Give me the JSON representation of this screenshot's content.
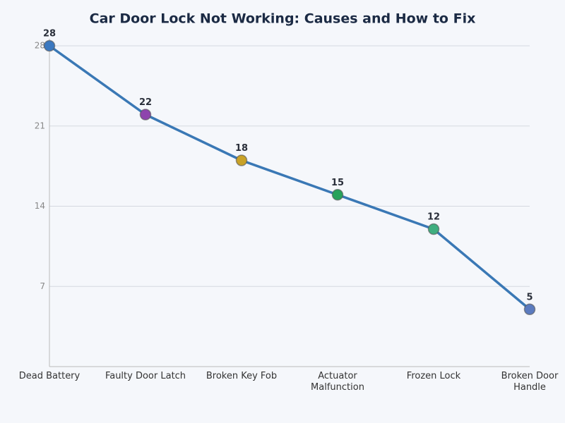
{
  "chart_data": {
    "type": "line",
    "title": "Car Door Lock Not Working: Causes and How to Fix",
    "categories": [
      "Dead Battery",
      "Faulty Door Latch",
      "Broken Key Fob",
      "Actuator Malfunction",
      "Frozen Lock",
      "Broken Door Handle"
    ],
    "series": [
      {
        "color": "#3a78b5",
        "values": [
          28,
          22,
          18,
          15,
          12,
          5
        ],
        "point_colors": [
          "#3a78c0",
          "#8e44ad",
          "#c9a227",
          "#27a25a",
          "#3fae7f",
          "#5b7bbf"
        ]
      }
    ],
    "ylim": [
      0,
      28
    ],
    "yticks": [
      7,
      14,
      21,
      28
    ],
    "grid": true
  }
}
